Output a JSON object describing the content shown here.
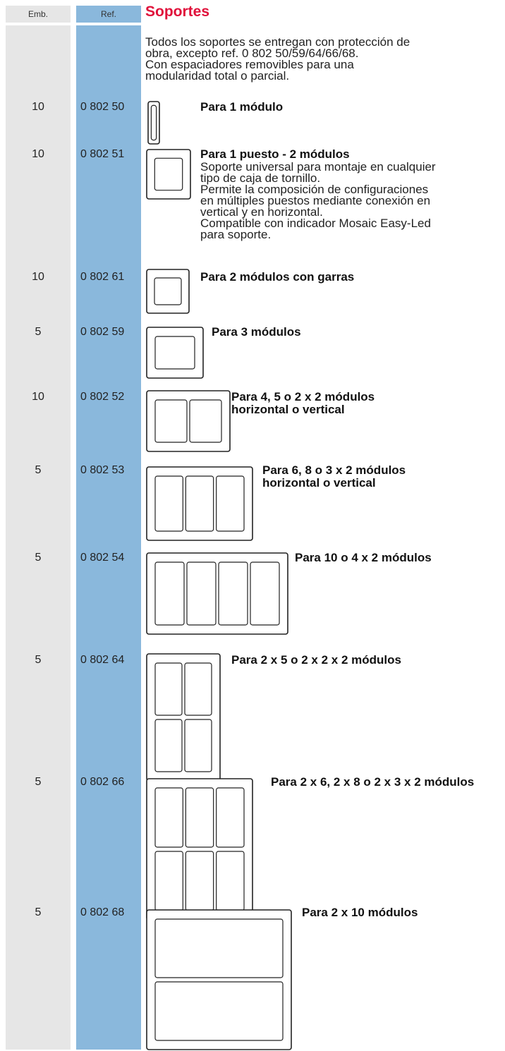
{
  "header": {
    "emb": "Emb.",
    "ref": "Ref.",
    "title": "Soportes"
  },
  "intro": [
    "Todos los soportes se entregan con protección de",
    "obra, excepto ref. 0 802 50/59/64/66/68.",
    "Con espaciadores removibles para una",
    "modularidad total o parcial."
  ],
  "items": [
    {
      "emb": "10",
      "ref": "0 802 50",
      "title": "Para 1 módulo"
    },
    {
      "emb": "10",
      "ref": "0 802 51",
      "title": "Para 1 puesto - 2 módulos",
      "description": [
        "Soporte universal para montaje en cualquier",
        "tipo de caja de tornillo.",
        "Permite la composición de configuraciones",
        "en múltiples puestos mediante conexión en",
        "vertical y en horizontal.",
        "Compatible con indicador Mosaic Easy-Led",
        "para soporte."
      ]
    },
    {
      "emb": "10",
      "ref": "0 802 61",
      "title": "Para 2 módulos con garras"
    },
    {
      "emb": "5",
      "ref": "0 802 59",
      "title": "Para 3 módulos"
    },
    {
      "emb": "10",
      "ref": "0 802 52",
      "title": "Para 4, 5 o 2 x 2 módulos horizontal o vertical"
    },
    {
      "emb": "5",
      "ref": "0 802 53",
      "title": "Para 6, 8 o 3 x 2 módulos horizontal o vertical"
    },
    {
      "emb": "5",
      "ref": "0 802 54",
      "title": "Para 10 o 4 x 2 módulos"
    },
    {
      "emb": "5",
      "ref": "0 802 64",
      "title": "Para 2 x 5 o 2 x 2 x 2 módulos"
    },
    {
      "emb": "5",
      "ref": "0 802 66",
      "title": "Para 2 x 6, 2 x 8 o 2 x 3 x 2 módulos"
    },
    {
      "emb": "5",
      "ref": "0 802 68",
      "title": "Para 2 x 10 módulos"
    }
  ]
}
